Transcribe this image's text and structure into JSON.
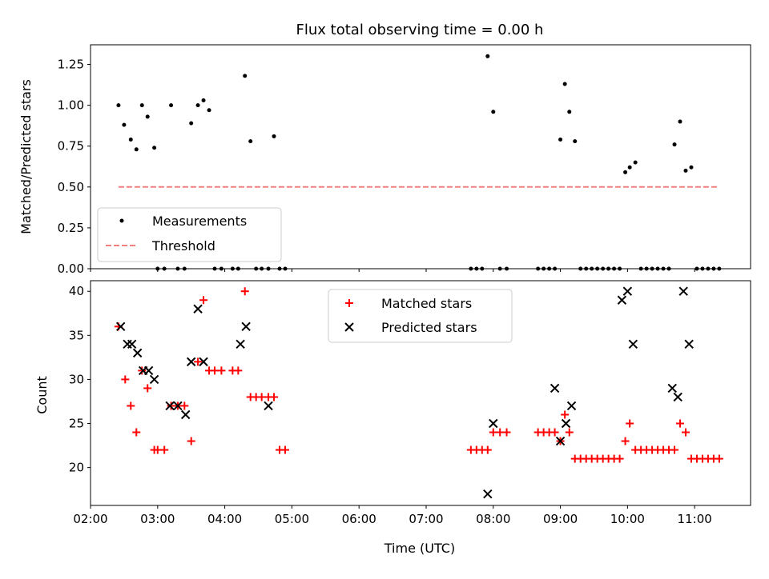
{
  "chart_data": [
    {
      "type": "scatter",
      "title": "Flux total observing time = 0.00 h",
      "xlabel": "",
      "ylabel": "Matched/Predicted stars",
      "ylim": [
        0,
        1.37
      ],
      "yticks": [
        "0.00",
        "0.25",
        "0.50",
        "0.75",
        "1.00",
        "1.25"
      ],
      "grid": false,
      "legend_position": "lower-left",
      "series": [
        {
          "name": "Measurements",
          "marker": "dot",
          "color": "#000000",
          "x": [
            "02:25",
            "02:30",
            "02:36",
            "02:41",
            "02:46",
            "02:51",
            "02:57",
            "03:00",
            "03:06",
            "03:12",
            "03:18",
            "03:24",
            "03:30",
            "03:36",
            "03:41",
            "03:46",
            "03:51",
            "03:57",
            "04:07",
            "04:12",
            "04:18",
            "04:23",
            "04:28",
            "04:33",
            "04:39",
            "04:44",
            "04:49",
            "04:54",
            "07:40",
            "07:45",
            "07:50",
            "07:55",
            "08:00",
            "08:06",
            "08:12",
            "08:40",
            "08:45",
            "08:50",
            "08:55",
            "09:00",
            "09:04",
            "09:08",
            "09:13",
            "09:18",
            "09:23",
            "09:28",
            "09:33",
            "09:38",
            "09:43",
            "09:48",
            "09:53",
            "09:58",
            "10:02",
            "10:07",
            "10:12",
            "10:17",
            "10:22",
            "10:27",
            "10:32",
            "10:37",
            "10:42",
            "10:47",
            "10:52",
            "10:57",
            "11:02",
            "11:07",
            "11:12",
            "11:17",
            "11:22"
          ],
          "y": [
            1.0,
            0.88,
            0.79,
            0.73,
            1.0,
            0.93,
            0.74,
            0.0,
            0.0,
            1.0,
            0.0,
            0.0,
            0.89,
            1.0,
            1.03,
            0.97,
            0.0,
            0.0,
            0.0,
            0.0,
            1.18,
            0.78,
            0.0,
            0.0,
            0.0,
            0.81,
            0.0,
            0.0,
            0.0,
            0.0,
            0.0,
            1.3,
            0.96,
            0.0,
            0.0,
            0.0,
            0.0,
            0.0,
            0.0,
            0.79,
            1.13,
            0.96,
            0.78,
            0.0,
            0.0,
            0.0,
            0.0,
            0.0,
            0.0,
            0.0,
            0.0,
            0.59,
            0.62,
            0.65,
            0.0,
            0.0,
            0.0,
            0.0,
            0.0,
            0.0,
            0.76,
            0.9,
            0.6,
            0.62,
            0.0,
            0.0,
            0.0,
            0.0,
            0.0
          ]
        },
        {
          "name": "Threshold",
          "type": "line",
          "style": "dashed",
          "color": "#f08080",
          "x": [
            "02:25",
            "11:22"
          ],
          "y": [
            0.5,
            0.5
          ]
        }
      ]
    },
    {
      "type": "scatter",
      "title": "",
      "xlabel": "Time (UTC)",
      "ylabel": "Count",
      "ylim": [
        15.7,
        41.2
      ],
      "yticks": [
        "20",
        "25",
        "30",
        "35",
        "40"
      ],
      "xlim": [
        "02:00",
        "11:50"
      ],
      "xticks": [
        "02:00",
        "03:00",
        "04:00",
        "05:00",
        "06:00",
        "07:00",
        "08:00",
        "09:00",
        "10:00",
        "11:00"
      ],
      "grid": false,
      "legend_position": "top-center",
      "series": [
        {
          "name": "Matched stars",
          "marker": "plus",
          "color": "#ff0000",
          "x": [
            "02:25",
            "02:31",
            "02:36",
            "02:41",
            "02:46",
            "02:51",
            "02:57",
            "03:00",
            "03:06",
            "03:12",
            "03:18",
            "03:24",
            "03:30",
            "03:36",
            "03:41",
            "03:46",
            "03:51",
            "03:57",
            "04:07",
            "04:12",
            "04:18",
            "04:23",
            "04:28",
            "04:33",
            "04:39",
            "04:44",
            "04:49",
            "04:54",
            "07:40",
            "07:45",
            "07:50",
            "07:55",
            "08:00",
            "08:06",
            "08:12",
            "08:40",
            "08:45",
            "08:50",
            "08:55",
            "09:00",
            "09:04",
            "09:08",
            "09:13",
            "09:18",
            "09:23",
            "09:28",
            "09:33",
            "09:38",
            "09:43",
            "09:48",
            "09:53",
            "09:58",
            "10:02",
            "10:07",
            "10:12",
            "10:17",
            "10:22",
            "10:27",
            "10:32",
            "10:37",
            "10:42",
            "10:47",
            "10:52",
            "10:57",
            "11:02",
            "11:07",
            "11:12",
            "11:17",
            "11:22"
          ],
          "y": [
            36,
            30,
            27,
            24,
            31,
            29,
            22,
            22,
            22,
            27,
            27,
            27,
            23,
            32,
            39,
            31,
            31,
            31,
            31,
            31,
            40,
            28,
            28,
            28,
            28,
            28,
            22,
            22,
            22,
            22,
            22,
            22,
            24,
            24,
            24,
            24,
            24,
            24,
            24,
            23,
            26,
            24,
            21,
            21,
            21,
            21,
            21,
            21,
            21,
            21,
            21,
            23,
            25,
            22,
            22,
            22,
            22,
            22,
            22,
            22,
            22,
            25,
            24,
            21,
            21,
            21,
            21,
            21,
            21
          ]
        },
        {
          "name": "Predicted stars",
          "marker": "x",
          "color": "#000000",
          "x": [
            "02:27",
            "02:33",
            "02:37",
            "02:42",
            "02:47",
            "02:52",
            "02:57",
            "03:11",
            "03:18",
            "03:25",
            "03:30",
            "03:36",
            "03:41",
            "04:14",
            "04:19",
            "04:39",
            "07:55",
            "08:00",
            "08:55",
            "09:00",
            "09:05",
            "09:10",
            "09:55",
            "10:00",
            "10:05",
            "10:40",
            "10:45",
            "10:50",
            "10:55"
          ],
          "y": [
            36,
            34,
            34,
            33,
            31,
            31,
            30,
            27,
            27,
            26,
            32,
            38,
            32,
            34,
            36,
            27,
            17,
            25,
            29,
            23,
            25,
            27,
            39,
            40,
            34,
            29,
            28,
            40,
            34
          ]
        }
      ]
    }
  ]
}
